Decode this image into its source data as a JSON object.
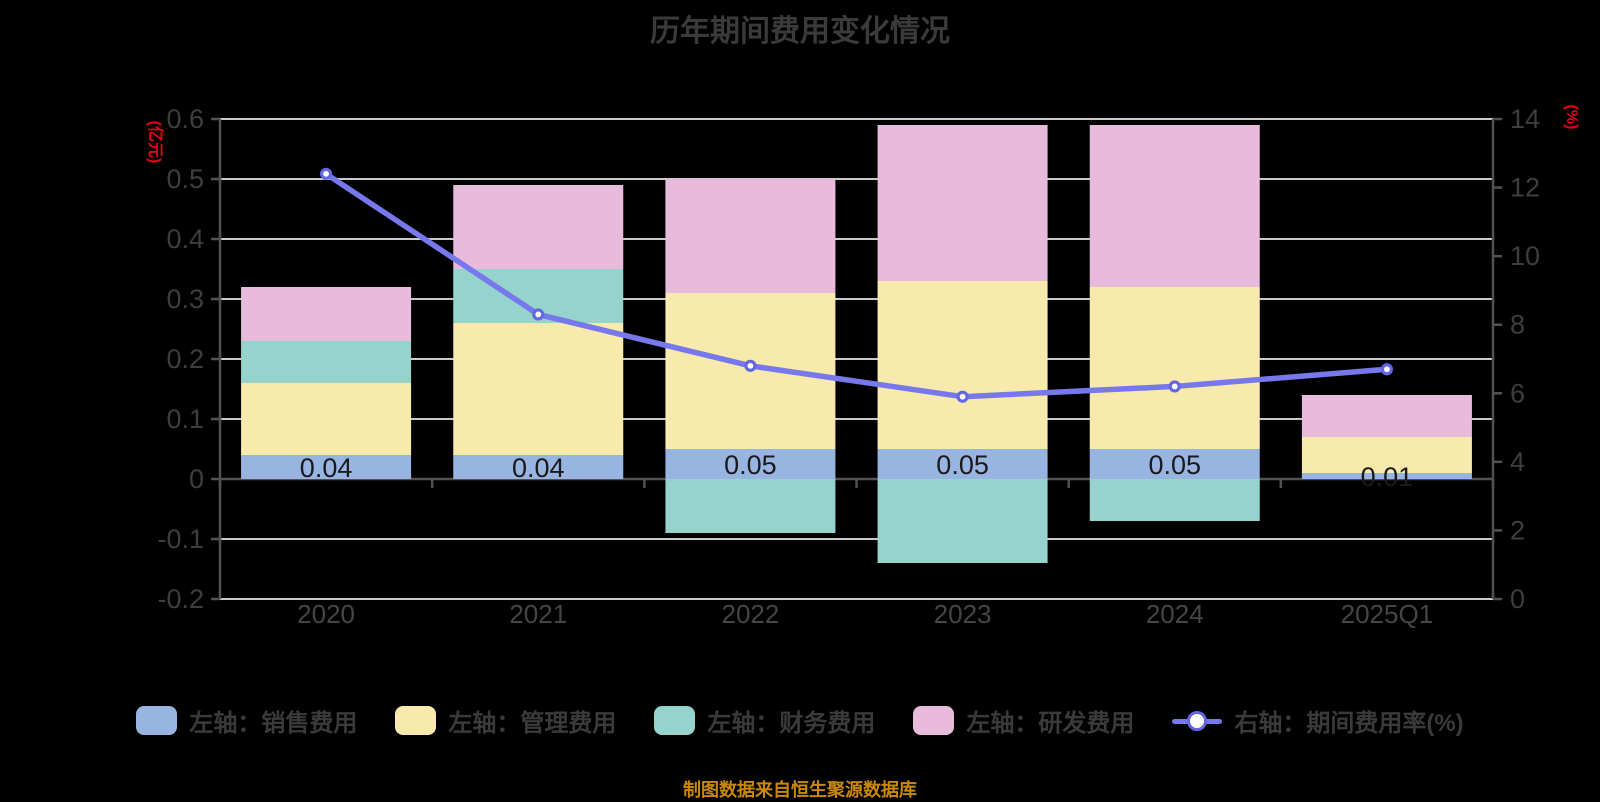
{
  "title": "历年期间费用变化情况",
  "source_note": "制图数据来自恒生聚源数据库",
  "left_axis": {
    "unit": "(亿元)",
    "ticks": [
      "0.6",
      "0.5",
      "0.4",
      "0.3",
      "0.2",
      "0.1",
      "0",
      "-0.1",
      "-0.2"
    ],
    "min": -0.2,
    "max": 0.6
  },
  "right_axis": {
    "unit": "(%)",
    "ticks": [
      "14",
      "12",
      "10",
      "8",
      "6",
      "4",
      "2",
      "0"
    ],
    "min": 0,
    "max": 14
  },
  "chart_data": {
    "type": "bar",
    "subtype": "stacked-bars-with-line-overlay-dual-axis",
    "title": "历年期间费用变化情况",
    "categories": [
      "2020",
      "2021",
      "2022",
      "2023",
      "2024",
      "2025Q1"
    ],
    "series": [
      {
        "name": "左轴：销售费用",
        "kind": "bar",
        "axis": "left",
        "color": "#98B4E0",
        "values": [
          0.04,
          0.04,
          0.05,
          0.05,
          0.05,
          0.01
        ]
      },
      {
        "name": "左轴：管理费用",
        "kind": "bar",
        "axis": "left",
        "color": "#F8E9AD",
        "values": [
          0.12,
          0.22,
          0.26,
          0.28,
          0.27,
          0.06
        ]
      },
      {
        "name": "左轴：财务费用",
        "kind": "bar",
        "axis": "left",
        "color": "#95D3CC",
        "values": [
          0.07,
          0.09,
          -0.09,
          -0.14,
          -0.07,
          0
        ]
      },
      {
        "name": "左轴：研发费用",
        "kind": "bar",
        "axis": "left",
        "color": "#E8BBDD",
        "values": [
          0.09,
          0.14,
          0.19,
          0.26,
          0.27,
          0.07
        ]
      },
      {
        "name": "右轴：期间费用率(%)",
        "kind": "line",
        "axis": "right",
        "color": "#7678EC",
        "marker_fill": "#FFFFFF",
        "marker_stroke": "#6467E2",
        "values": [
          12.4,
          8.3,
          6.8,
          5.9,
          6.2,
          6.7
        ]
      }
    ],
    "bar_value_labels": [
      "0.04",
      "0.04",
      "0.05",
      "0.05",
      "0.05",
      "0.01"
    ],
    "left_ylim": [
      -0.2,
      0.6
    ],
    "right_ylim": [
      0,
      14
    ],
    "grid": true,
    "legend_position": "bottom"
  },
  "colors": {
    "background": "#000000",
    "title_text": "#3A3A3C",
    "tick_text": "#3E3E41",
    "x_label_text": "#454548",
    "axis_unit_text": "#E60012",
    "grid_line": "#C9C9C9",
    "axis_spine": "#515154",
    "bar_label_text": "#1A1A1C",
    "source_note_text": "#C8870D"
  }
}
